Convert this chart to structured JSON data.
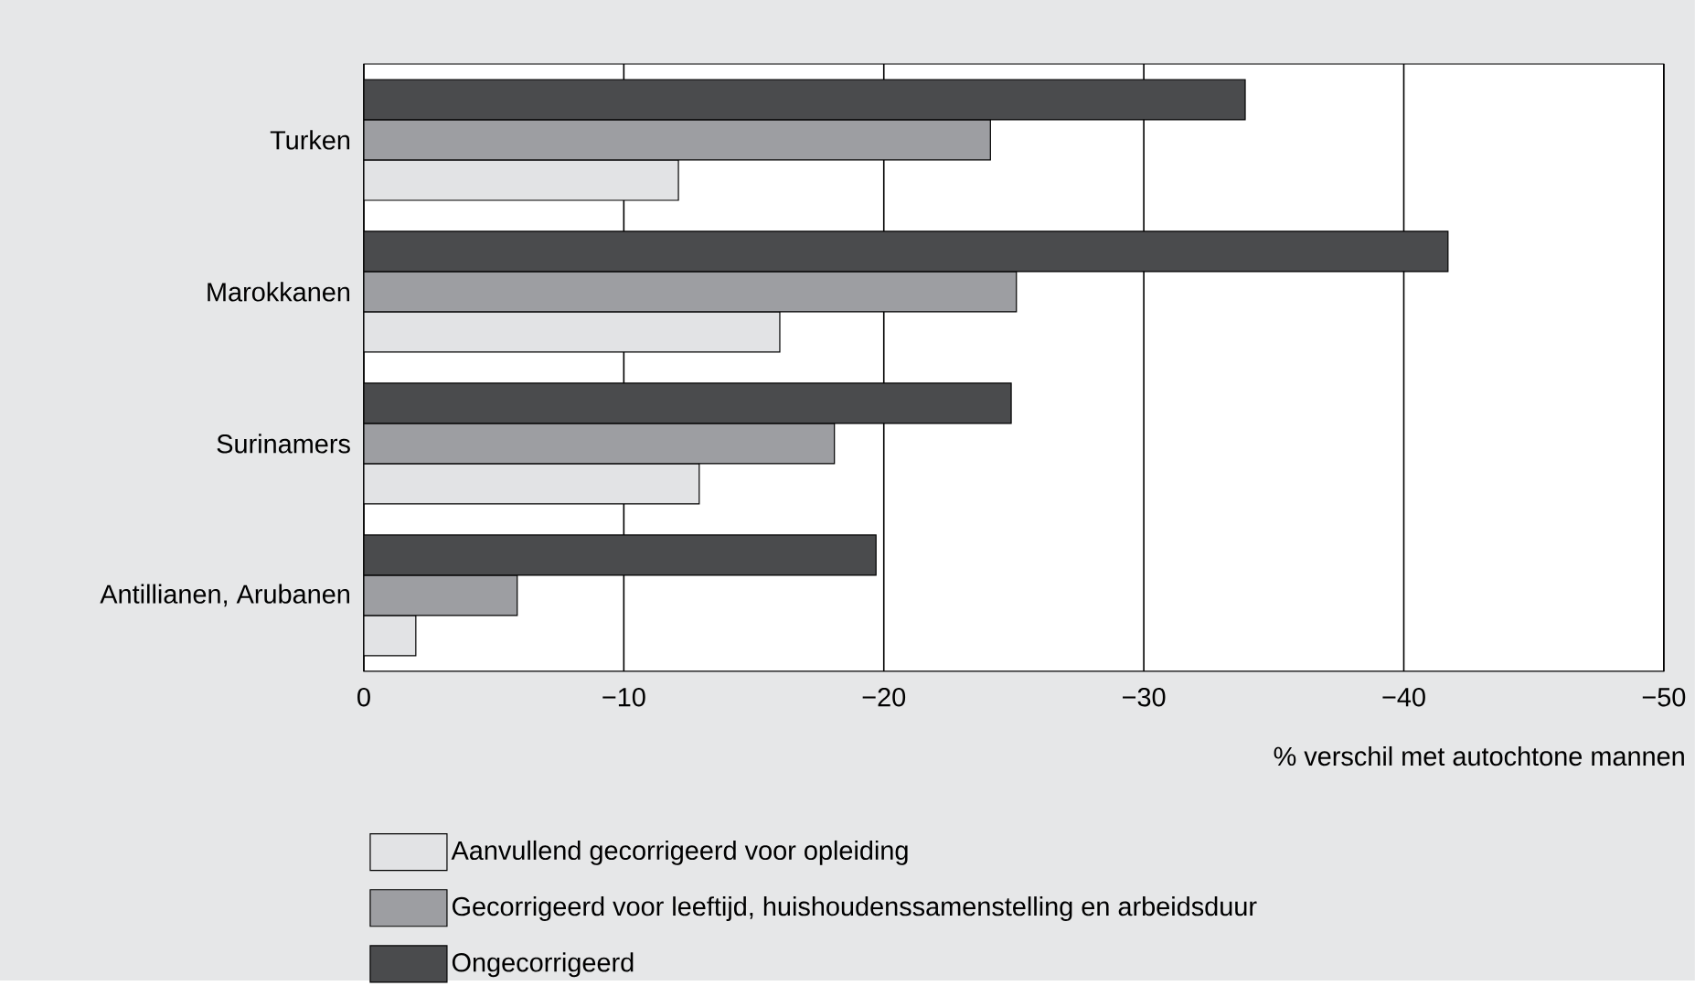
{
  "chart_data": {
    "type": "bar",
    "orientation": "horizontal",
    "categories": [
      "Turken",
      "Marokkanen",
      "Surinamers",
      "Antillianen, Arubanen"
    ],
    "series": [
      {
        "name": "Aanvullend gecorrigeerd voor opleiding",
        "color": "#e2e3e5",
        "values": [
          -12.1,
          -16.0,
          -12.9,
          -2.0
        ]
      },
      {
        "name": "Gecorrigeerd voor leeftijd, huishoudenssamenstelling en arbeidsduur",
        "color": "#9d9ea2",
        "values": [
          -24.1,
          -25.1,
          -18.1,
          -5.9
        ]
      },
      {
        "name": "Ongecorrigeerd",
        "color": "#4a4b4d",
        "values": [
          -33.9,
          -41.7,
          -24.9,
          -19.7
        ]
      }
    ],
    "xlim": [
      0,
      -50
    ],
    "xticks": [
      0,
      {
        "value": -10,
        "label": "−10"
      },
      {
        "value": -20,
        "label": "−20"
      },
      {
        "value": -30,
        "label": "−30"
      },
      {
        "value": -40,
        "label": "−40"
      },
      {
        "value": -50,
        "label": "−50"
      }
    ],
    "xlabel": "% verschil met autochtone mannen",
    "grid": "x",
    "legend": "bottom"
  }
}
